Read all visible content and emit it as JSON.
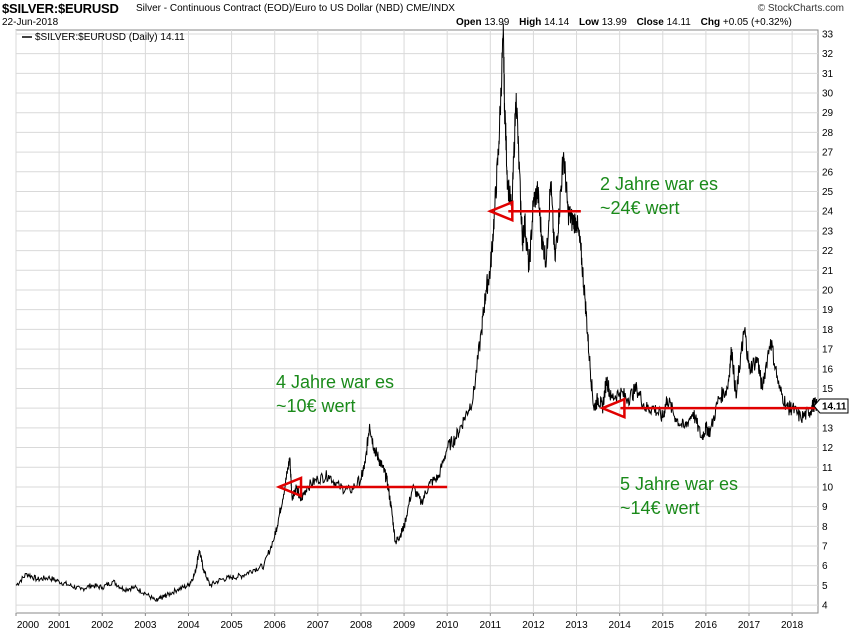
{
  "header": {
    "symbol": "$SILVER:$EURUSD",
    "description": "Silver - Continuous Contract (EOD)/Euro to US Dollar (NBD)  CME/INDX",
    "date": "22-Jun-2018",
    "credit": "© StockCharts.com",
    "open_label": "Open",
    "open": "13.99",
    "high_label": "High",
    "high": "14.14",
    "low_label": "Low",
    "low": "13.99",
    "close_label": "Close",
    "close": "14.11",
    "chg_label": "Chg",
    "chg": "+0.05 (+0.32%)"
  },
  "legend": "$SILVER:$EURUSD (Daily) 14.11",
  "last_value_label": "14.11",
  "colors": {
    "price_line": "#000000",
    "arrow": "#e00000",
    "annotation": "#1a8a1a",
    "grid": "#d9d9d9"
  },
  "chart_data": {
    "type": "line",
    "title": "",
    "xlabel": "",
    "ylabel": "",
    "ylim": [
      3.6,
      33.2
    ],
    "yticks": [
      4,
      5,
      6,
      7,
      8,
      9,
      10,
      11,
      12,
      13,
      14,
      15,
      16,
      17,
      18,
      19,
      20,
      21,
      22,
      23,
      24,
      25,
      26,
      27,
      28,
      29,
      30,
      31,
      32,
      33
    ],
    "xticks": [
      "2000",
      "2001",
      "2002",
      "2003",
      "2004",
      "2005",
      "2006",
      "2007",
      "2008",
      "2009",
      "2010",
      "2011",
      "2012",
      "2013",
      "2014",
      "2015",
      "2016",
      "2017",
      "2018"
    ],
    "xlim": [
      2000.0,
      2018.6
    ],
    "grid": true,
    "series": [
      {
        "name": "$SILVER:$EURUSD (Daily)",
        "x": [
          2000.0,
          2000.25,
          2000.5,
          2000.75,
          2001.0,
          2001.25,
          2001.5,
          2001.75,
          2002.0,
          2002.25,
          2002.5,
          2002.75,
          2003.0,
          2003.25,
          2003.4,
          2003.5,
          2003.75,
          2004.0,
          2004.15,
          2004.25,
          2004.35,
          2004.5,
          2004.75,
          2005.0,
          2005.25,
          2005.5,
          2005.75,
          2006.0,
          2006.1,
          2006.25,
          2006.35,
          2006.4,
          2006.5,
          2006.6,
          2006.75,
          2007.0,
          2007.25,
          2007.5,
          2007.75,
          2008.0,
          2008.1,
          2008.2,
          2008.3,
          2008.4,
          2008.5,
          2008.6,
          2008.7,
          2008.8,
          2008.9,
          2009.0,
          2009.2,
          2009.4,
          2009.6,
          2009.8,
          2010.0,
          2010.2,
          2010.4,
          2010.6,
          2010.8,
          2010.9,
          2011.0,
          2011.1,
          2011.2,
          2011.3,
          2011.33,
          2011.4,
          2011.5,
          2011.6,
          2011.7,
          2011.75,
          2011.8,
          2011.9,
          2012.0,
          2012.1,
          2012.2,
          2012.3,
          2012.4,
          2012.5,
          2012.6,
          2012.7,
          2012.8,
          2012.9,
          2013.0,
          2013.1,
          2013.2,
          2013.3,
          2013.4,
          2013.5,
          2013.6,
          2013.7,
          2013.8,
          2014.0,
          2014.2,
          2014.4,
          2014.6,
          2014.8,
          2015.0,
          2015.1,
          2015.3,
          2015.5,
          2015.7,
          2015.9,
          2016.0,
          2016.1,
          2016.3,
          2016.5,
          2016.6,
          2016.7,
          2016.8,
          2016.9,
          2017.0,
          2017.2,
          2017.3,
          2017.5,
          2017.7,
          2017.9,
          2018.0,
          2018.2,
          2018.4,
          2018.5,
          2018.6
        ],
        "values": [
          5.0,
          5.6,
          5.3,
          5.4,
          5.2,
          5.0,
          4.8,
          5.0,
          4.9,
          5.2,
          4.8,
          4.9,
          4.6,
          4.2,
          4.4,
          4.5,
          4.8,
          5.0,
          5.6,
          6.8,
          5.8,
          5.0,
          5.3,
          5.4,
          5.5,
          5.8,
          6.0,
          7.5,
          8.5,
          10.2,
          11.5,
          9.5,
          10.0,
          9.3,
          10.0,
          10.4,
          10.6,
          10.0,
          9.8,
          10.4,
          11.2,
          13.2,
          12.0,
          11.5,
          11.0,
          10.4,
          9.0,
          7.2,
          7.5,
          8.0,
          10.0,
          9.2,
          10.2,
          10.5,
          12.0,
          12.5,
          13.5,
          14.5,
          18.0,
          20.0,
          21.0,
          24.0,
          27.5,
          33.0,
          29.5,
          25.5,
          24.0,
          30.0,
          24.5,
          22.5,
          23.5,
          21.0,
          24.5,
          25.0,
          22.5,
          21.5,
          25.5,
          21.5,
          24.0,
          27.0,
          24.0,
          23.5,
          23.5,
          22.0,
          19.5,
          16.5,
          14.0,
          14.5,
          14.0,
          15.5,
          14.5,
          14.8,
          14.5,
          15.0,
          14.0,
          14.0,
          13.5,
          14.5,
          13.5,
          13.0,
          13.8,
          12.5,
          13.0,
          12.8,
          14.5,
          15.0,
          17.0,
          14.5,
          16.5,
          18.0,
          16.0,
          16.5,
          15.0,
          17.5,
          15.0,
          14.0,
          14.0,
          13.5,
          13.8,
          14.2,
          14.11
        ]
      }
    ],
    "annotations": [
      {
        "line1": "2 Jahre war es",
        "line2": "~24€ wert",
        "arrow_from": 2013.1,
        "arrow_to": 2011.0,
        "level": 24
      },
      {
        "line1": "4 Jahre war es",
        "line2": "~10€ wert",
        "arrow_from": 2010.0,
        "arrow_to": 2006.1,
        "level": 10
      },
      {
        "line1": "5 Jahre war es",
        "line2": "~14€ wert",
        "arrow_from": 2018.6,
        "arrow_to": 2013.6,
        "level": 14
      }
    ]
  }
}
